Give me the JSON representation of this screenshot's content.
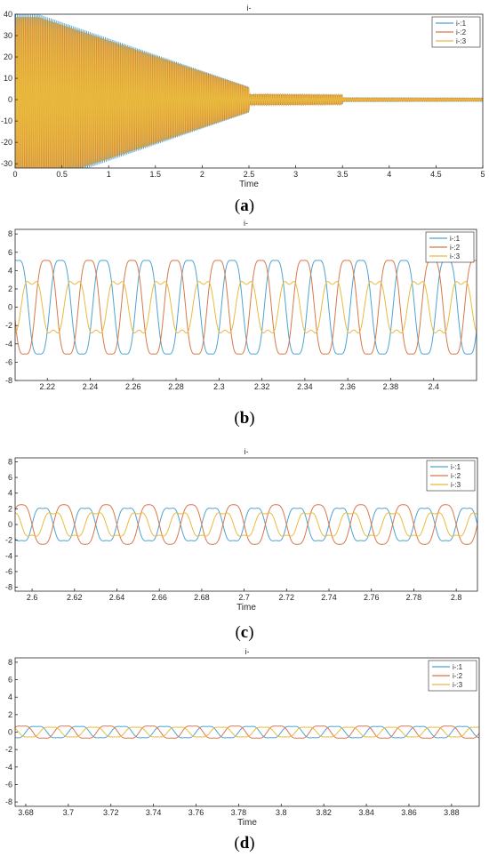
{
  "figure_labels": [
    {
      "letter": "a"
    },
    {
      "letter": "b"
    },
    {
      "letter": "c"
    },
    {
      "letter": "d"
    }
  ],
  "colors": {
    "i1": "#4fa3d1",
    "i2": "#d9774a",
    "i3": "#e8bb3d"
  },
  "chart_data": [
    {
      "id": "a",
      "type": "line",
      "title": "i-",
      "xlabel": "Time",
      "ylabel": "",
      "xlim": [
        0,
        5
      ],
      "ylim": [
        -32,
        40
      ],
      "xticks": [
        0,
        0.5,
        1,
        1.5,
        2,
        2.5,
        3,
        3.5,
        4,
        4.5,
        5
      ],
      "xtick_labels": [
        "0",
        "0.5",
        "1",
        "1.5",
        "2",
        "2.5",
        "3",
        "3.5",
        "4",
        "4.5",
        "5"
      ],
      "yticks": [
        -30,
        -20,
        -10,
        0,
        10,
        20,
        30,
        40
      ],
      "legend": [
        "i-:1",
        "i-:2",
        "i-:3"
      ],
      "legend_position": "top-right",
      "grid": false,
      "series": [
        {
          "name": "i-:1",
          "frequency": 50,
          "phase_deg": 0,
          "third_harmonic_ratio": 0,
          "amplitude_segments": [
            {
              "x": [
                0,
                0.25
              ],
              "y": [
                40,
                40
              ]
            },
            {
              "x": [
                0.25,
                2.5
              ],
              "y": [
                40,
                6
              ]
            },
            {
              "x": [
                2.5,
                3.5
              ],
              "y": [
                2.5,
                2.2
              ]
            },
            {
              "x": [
                3.5,
                5
              ],
              "y": [
                0.8,
                0.7
              ]
            }
          ]
        },
        {
          "name": "i-:2",
          "frequency": 50,
          "phase_deg": -120,
          "third_harmonic_ratio": 0,
          "amplitude_segments": [
            {
              "x": [
                0,
                0.25
              ],
              "y": [
                40,
                40
              ]
            },
            {
              "x": [
                0.25,
                2.5
              ],
              "y": [
                40,
                6
              ]
            },
            {
              "x": [
                2.5,
                3.5
              ],
              "y": [
                2.5,
                2.2
              ]
            },
            {
              "x": [
                3.5,
                5
              ],
              "y": [
                0.8,
                0.7
              ]
            }
          ]
        },
        {
          "name": "i-:3",
          "frequency": 50,
          "phase_deg": 120,
          "third_harmonic_ratio": 0,
          "amplitude_segments": [
            {
              "x": [
                0,
                0.25
              ],
              "y": [
                40,
                40
              ]
            },
            {
              "x": [
                0.25,
                2.5
              ],
              "y": [
                40,
                6
              ]
            },
            {
              "x": [
                2.5,
                3.5
              ],
              "y": [
                2.5,
                2.2
              ]
            },
            {
              "x": [
                3.5,
                5
              ],
              "y": [
                0.8,
                0.7
              ]
            }
          ]
        }
      ]
    },
    {
      "id": "b",
      "type": "line",
      "title": "i-",
      "xlabel": "",
      "ylabel": "",
      "xlim": [
        2.205,
        2.42
      ],
      "ylim": [
        -8,
        8.5
      ],
      "xticks": [
        2.22,
        2.24,
        2.26,
        2.28,
        2.3,
        2.32,
        2.34,
        2.36,
        2.38,
        2.4
      ],
      "xtick_labels": [
        "2.22",
        "2.24",
        "2.26",
        "2.28",
        "2.3",
        "2.32",
        "2.34",
        "2.36",
        "2.38",
        "2.4"
      ],
      "yticks": [
        -8,
        -6,
        -4,
        -2,
        0,
        2,
        4,
        6,
        8
      ],
      "legend": [
        "i-:1",
        "i-:2",
        "i-:3"
      ],
      "legend_position": "top-right",
      "grid": false,
      "series": [
        {
          "name": "i-:1",
          "frequency": 50,
          "amplitude": 5.8,
          "phase_deg": -20,
          "third_harmonic_ratio": 0.12
        },
        {
          "name": "i-:2",
          "frequency": 50,
          "amplitude": 5.8,
          "phase_deg": 100,
          "third_harmonic_ratio": 0.12
        },
        {
          "name": "i-:3",
          "frequency": 50,
          "amplitude": 3.2,
          "phase_deg": 220,
          "third_harmonic_ratio": 0.22
        }
      ]
    },
    {
      "id": "c",
      "type": "line",
      "title": "i-",
      "xlabel": "Time",
      "ylabel": "",
      "xlim": [
        2.592,
        2.81
      ],
      "ylim": [
        -8.5,
        8.5
      ],
      "xticks": [
        2.6,
        2.62,
        2.64,
        2.66,
        2.68,
        2.7,
        2.72,
        2.74,
        2.76,
        2.78,
        2.8
      ],
      "xtick_labels": [
        "2.6",
        "2.62",
        "2.64",
        "2.66",
        "2.68",
        "2.7",
        "2.72",
        "2.74",
        "2.76",
        "2.78",
        "2.8"
      ],
      "yticks": [
        -8,
        -6,
        -4,
        -2,
        0,
        2,
        4,
        6,
        8
      ],
      "legend": [
        "i-:1",
        "i-:2",
        "i-:3"
      ],
      "legend_position": "top-right",
      "grid": false,
      "series": [
        {
          "name": "i-:1",
          "frequency": 50,
          "amplitude": 2.4,
          "phase_deg": 0,
          "third_harmonic_ratio": 0.15
        },
        {
          "name": "i-:2",
          "frequency": 50,
          "amplitude": 2.8,
          "phase_deg": 180,
          "third_harmonic_ratio": 0.1
        },
        {
          "name": "i-:3",
          "frequency": 50,
          "amplitude": 1.7,
          "phase_deg": 270,
          "third_harmonic_ratio": 0.2
        }
      ]
    },
    {
      "id": "d",
      "type": "line",
      "title": "i-",
      "xlabel": "Time",
      "ylabel": "",
      "xlim": [
        3.675,
        3.893
      ],
      "ylim": [
        -8.5,
        8.5
      ],
      "xticks": [
        3.68,
        3.7,
        3.72,
        3.74,
        3.76,
        3.78,
        3.8,
        3.82,
        3.84,
        3.86,
        3.88
      ],
      "xtick_labels": [
        "3.68",
        "3.7",
        "3.72",
        "3.74",
        "3.76",
        "3.78",
        "3.8",
        "3.82",
        "3.84",
        "3.86",
        "3.88"
      ],
      "yticks": [
        -8,
        -6,
        -4,
        -2,
        0,
        2,
        4,
        6,
        8
      ],
      "legend": [
        "i-:1",
        "i-:2",
        "i-:3"
      ],
      "legend_position": "top-right",
      "grid": false,
      "series": [
        {
          "name": "i-:1",
          "frequency": 50,
          "amplitude": 0.75,
          "phase_deg": 0,
          "third_harmonic_ratio": 0.15
        },
        {
          "name": "i-:2",
          "frequency": 50,
          "amplitude": 0.8,
          "phase_deg": 120,
          "third_harmonic_ratio": 0.15
        },
        {
          "name": "i-:3",
          "frequency": 50,
          "amplitude": 0.65,
          "phase_deg": 240,
          "third_harmonic_ratio": 0.15
        }
      ]
    }
  ]
}
